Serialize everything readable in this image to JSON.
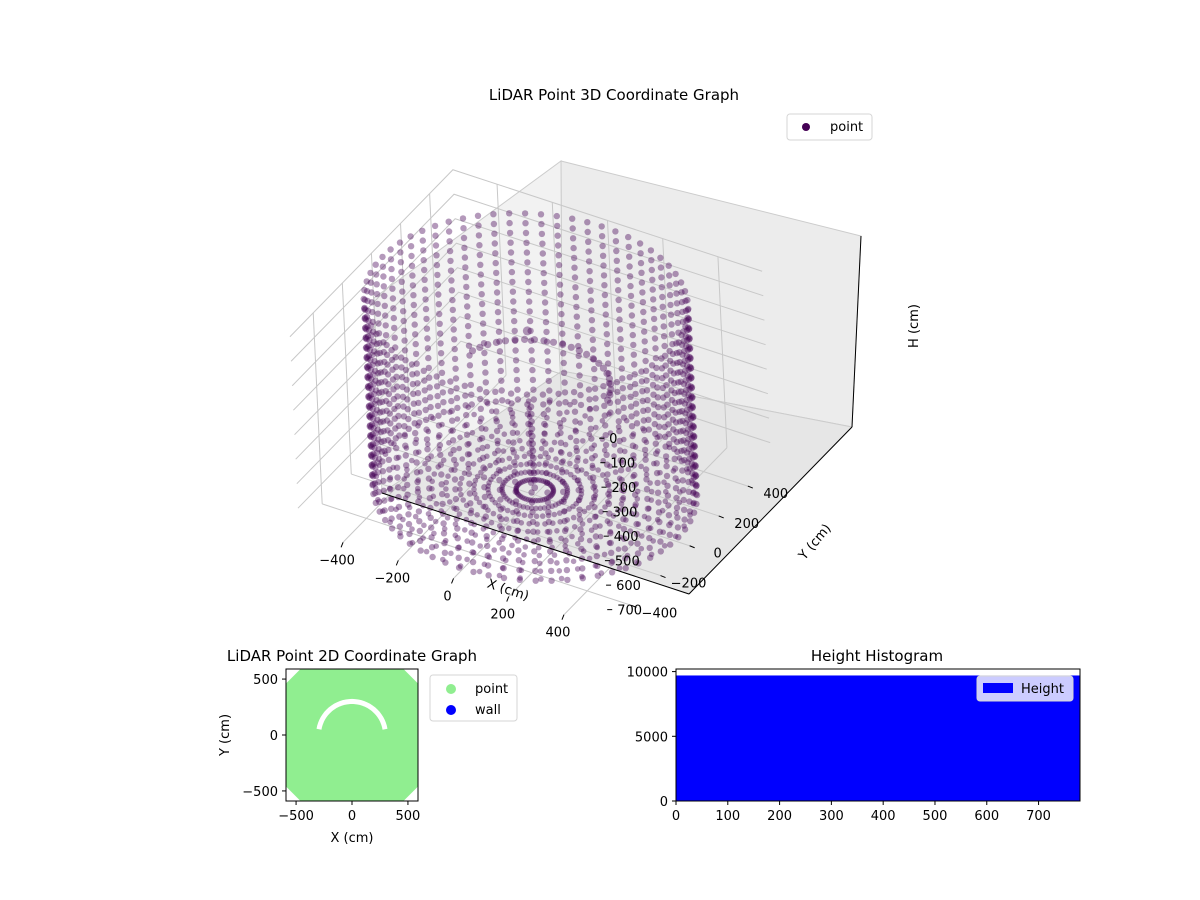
{
  "chart_data": [
    {
      "type": "scatter3d",
      "title": "LiDAR Point 3D Coordinate Graph",
      "xlabel": "X (cm)",
      "ylabel": "Y (cm)",
      "zlabel": "H (cm)",
      "xticks": [
        -400,
        -200,
        0,
        200,
        400
      ],
      "yticks": [
        -400,
        -200,
        0,
        200,
        400
      ],
      "zticks": [
        0,
        100,
        200,
        300,
        400,
        500,
        600,
        700
      ],
      "xlim": [
        -560,
        560
      ],
      "ylim": [
        -560,
        560
      ],
      "zlim": [
        0,
        780
      ],
      "z_inverted": true,
      "legend": {
        "labels": [
          "point"
        ],
        "placement": "upper-right"
      },
      "color": "#440154",
      "marker_alpha": 0.4,
      "point_cloud": {
        "description_of_shape": "cylindrical wall",
        "wall_radius_cm": 520,
        "height_range_cm": [
          0,
          780
        ],
        "inner_arc_height_cm": 330,
        "floor_cluster_height_cm": 760
      }
    },
    {
      "type": "scatter",
      "title": "LiDAR Point 2D Coordinate Graph",
      "xlabel": "X (cm)",
      "ylabel": "Y (cm)",
      "xticks": [
        -500,
        0,
        500
      ],
      "yticks": [
        -500,
        0,
        500
      ],
      "xlim": [
        -590,
        590
      ],
      "ylim": [
        -590,
        590
      ],
      "legend": {
        "labels": [
          "point",
          "wall"
        ],
        "placement": "outside-right"
      },
      "series": [
        {
          "name": "point",
          "color": "#90ee90",
          "region": "filled octagon",
          "half_width_cm": 590,
          "corner_cut_cm": 130
        },
        {
          "name": "wall",
          "color": "#0000ff"
        }
      ],
      "gap_arc": {
        "radius_cm": 300,
        "angle_range_deg": [
          10,
          170
        ]
      }
    },
    {
      "type": "bar",
      "title": "Height Histogram",
      "xticks": [
        0,
        100,
        200,
        300,
        400,
        500,
        600,
        700
      ],
      "yticks": [
        0,
        5000,
        10000
      ],
      "xlim": [
        0,
        780
      ],
      "ylim": [
        0,
        10200
      ],
      "legend": {
        "labels": [
          "Height"
        ],
        "placement": "upper-right"
      },
      "series": [
        {
          "name": "Height",
          "color": "#0000ff",
          "bin_range": [
            0,
            780
          ],
          "value": 9700
        }
      ]
    }
  ]
}
